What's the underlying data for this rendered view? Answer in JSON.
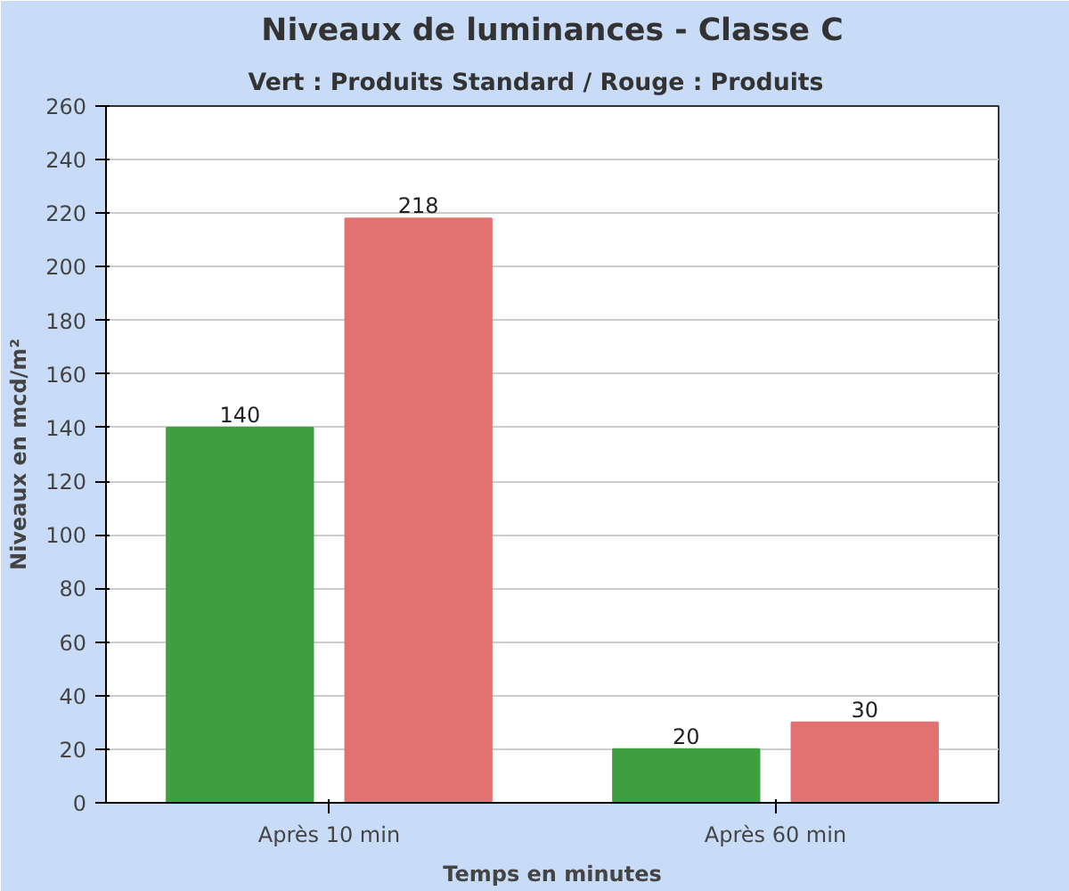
{
  "chart_data": {
    "type": "bar",
    "title": "Niveaux de luminances - Classe C",
    "subtitle": "Vert : Produits Standard   /   Rouge : Produits",
    "xlabel": "Temps en minutes",
    "ylabel": "Niveaux en mcd/m²",
    "categories": [
      "Après 10 min",
      "Après 60 min"
    ],
    "series": [
      {
        "color": "#3f9f3f",
        "values": [
          140,
          20
        ]
      },
      {
        "color": "#e27272",
        "values": [
          218,
          30
        ]
      }
    ],
    "ylim": [
      0,
      260
    ],
    "yticks": [
      0,
      20,
      40,
      60,
      80,
      100,
      120,
      140,
      160,
      180,
      200,
      220,
      240,
      260
    ],
    "grid": "y",
    "data_labels": true
  }
}
